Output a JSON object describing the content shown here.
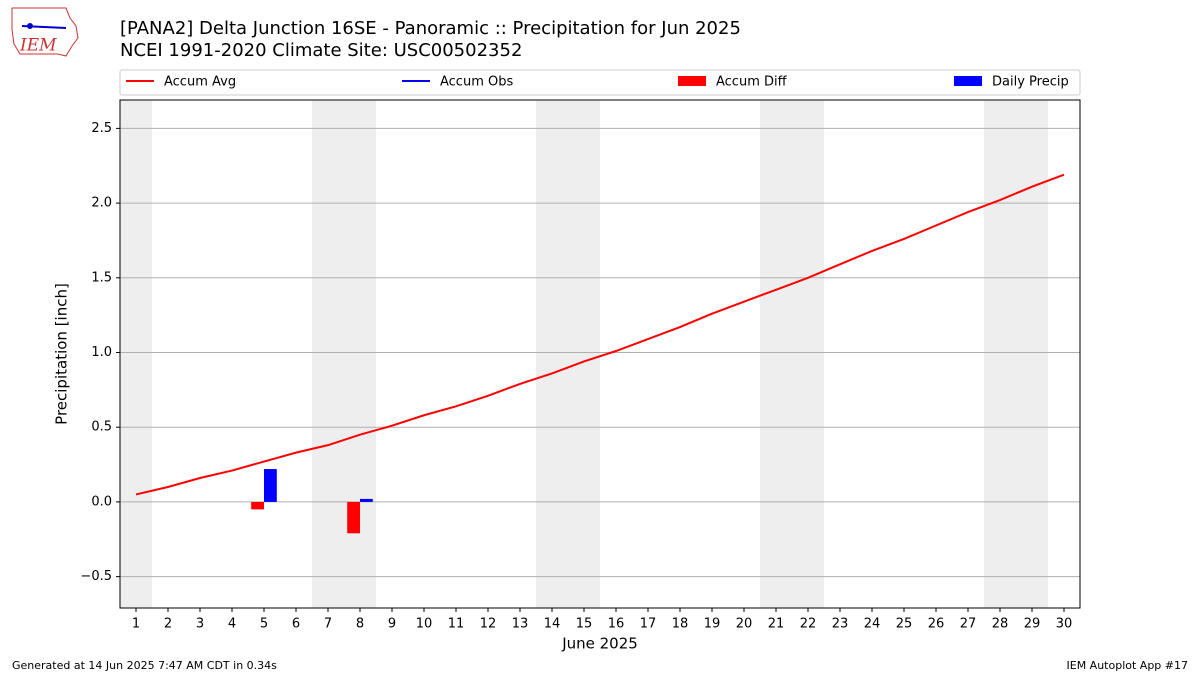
{
  "logo": "IEM",
  "footer": {
    "left": "Generated at 14 Jun 2025 7:47 AM CDT in 0.34s",
    "right": "IEM Autoplot App #17"
  },
  "chart_data": {
    "type": "line",
    "title": "[PANA2] Delta Junction 16SE - Panoramic :: Precipitation for Jun 2025",
    "subtitle": "NCEI 1991-2020 Climate Site: USC00502352",
    "x_label": "June 2025",
    "y_label": "Precipitation [inch]",
    "x": [
      1,
      2,
      3,
      4,
      5,
      6,
      7,
      8,
      9,
      10,
      11,
      12,
      13,
      14,
      15,
      16,
      17,
      18,
      19,
      20,
      21,
      22,
      23,
      24,
      25,
      26,
      27,
      28,
      29,
      30
    ],
    "series": [
      {
        "name": "Accum Avg",
        "kind": "line",
        "color": "#ff0000",
        "values": [
          0.05,
          0.1,
          0.16,
          0.21,
          0.27,
          0.33,
          0.38,
          0.45,
          0.51,
          0.58,
          0.64,
          0.71,
          0.79,
          0.86,
          0.94,
          1.01,
          1.09,
          1.17,
          1.26,
          1.34,
          1.42,
          1.5,
          1.59,
          1.68,
          1.76,
          1.85,
          1.94,
          2.02,
          2.11,
          2.19
        ]
      },
      {
        "name": "Accum Obs",
        "kind": "line",
        "color": "#0000ff",
        "values": [
          null,
          null,
          null,
          null,
          null,
          null,
          null,
          null,
          null,
          null,
          null,
          null,
          null,
          null,
          null,
          null,
          null,
          null,
          null,
          null,
          null,
          null,
          null,
          null,
          null,
          null,
          null,
          null,
          null,
          null
        ]
      },
      {
        "name": "Accum Diff",
        "kind": "bar",
        "color": "#ff0000",
        "values": [
          null,
          null,
          null,
          null,
          -0.05,
          null,
          null,
          -0.21,
          null,
          null,
          null,
          null,
          null,
          null,
          null,
          null,
          null,
          null,
          null,
          null,
          null,
          null,
          null,
          null,
          null,
          null,
          null,
          null,
          null,
          null
        ]
      },
      {
        "name": "Daily Precip",
        "kind": "bar",
        "color": "#0000ff",
        "values": [
          null,
          null,
          null,
          null,
          0.22,
          null,
          null,
          0.02,
          null,
          null,
          null,
          null,
          null,
          null,
          null,
          null,
          null,
          null,
          null,
          null,
          null,
          null,
          null,
          null,
          null,
          null,
          null,
          null,
          null,
          null
        ]
      }
    ],
    "weekend_shading": [
      [
        0.5,
        1.5
      ],
      [
        6.5,
        8.5
      ],
      [
        13.5,
        15.5
      ],
      [
        20.5,
        22.5
      ],
      [
        27.5,
        29.5
      ]
    ],
    "xlim": [
      0.5,
      30.5
    ],
    "xticks": [
      1,
      2,
      3,
      4,
      5,
      6,
      7,
      8,
      9,
      10,
      11,
      12,
      13,
      14,
      15,
      16,
      17,
      18,
      19,
      20,
      21,
      22,
      23,
      24,
      25,
      26,
      27,
      28,
      29,
      30
    ],
    "ylim": [
      -0.71,
      2.69
    ],
    "yticks": [
      {
        "value": -0.5,
        "label": "−0.5"
      },
      {
        "value": 0,
        "label": "0.0"
      },
      0.5,
      {
        "value": 1,
        "label": "1.0"
      },
      1.5,
      {
        "value": 2,
        "label": "2.0"
      },
      2.5
    ],
    "grid": true
  }
}
